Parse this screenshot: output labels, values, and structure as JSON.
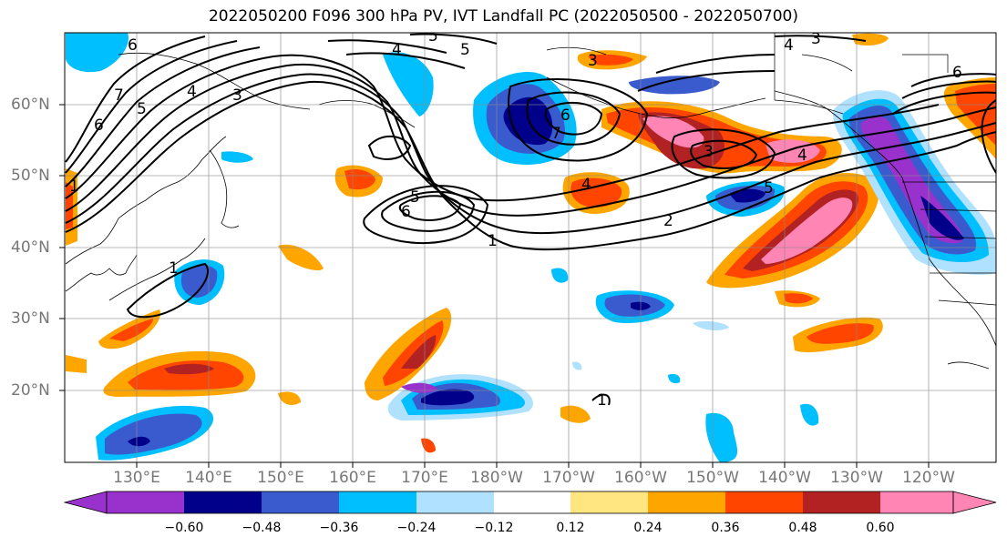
{
  "title": "2022050200 F096 300 hPa PV, IVT Landfall PC (2022050500 - 2022050700)",
  "lon_ticks": [
    "130°E",
    "140°E",
    "150°E",
    "160°E",
    "170°E",
    "180°W",
    "170°W",
    "160°W",
    "150°W",
    "140°W",
    "130°W",
    "120°W"
  ],
  "lat_ticks": [
    "60°N",
    "50°N",
    "40°N",
    "30°N",
    "20°N"
  ],
  "colorbar": {
    "labels": [
      "−0.60",
      "−0.48",
      "−0.36",
      "−0.24",
      "−0.12",
      "0.12",
      "0.24",
      "0.36",
      "0.48",
      "0.60"
    ],
    "colors": [
      "#9932cc",
      "#00008b",
      "#3a5bcd",
      "#00bfff",
      "#b0e2ff",
      "#ffffff",
      "#ffe680",
      "#ffa500",
      "#ff4500",
      "#b22222",
      "#ff85b5"
    ]
  },
  "pv_contour_labels": [
    "1",
    "2",
    "3",
    "4",
    "5",
    "6",
    "7"
  ]
}
